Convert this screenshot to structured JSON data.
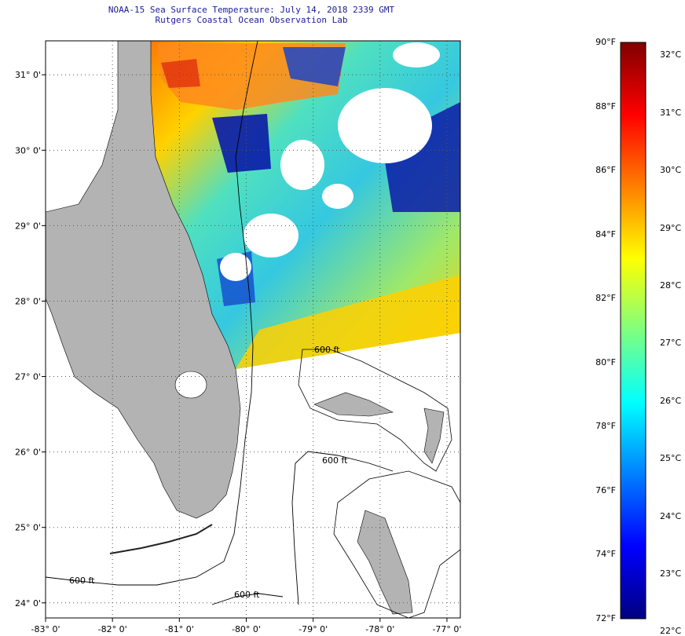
{
  "title": {
    "line1": "NOAA-15 Sea Surface Temperature:  July 14, 2018 2339 GMT",
    "line2": "Rutgers Coastal Ocean Observation Lab"
  },
  "map": {
    "lon_range": [
      -83,
      -76.8
    ],
    "lat_range": [
      23.8,
      31.45
    ],
    "lon_ticks": [
      {
        "value": -83,
        "label": "-83° 0'"
      },
      {
        "value": -82,
        "label": "-82° 0'"
      },
      {
        "value": -81,
        "label": "-81° 0'"
      },
      {
        "value": -80,
        "label": "-80° 0'"
      },
      {
        "value": -79,
        "label": "-79° 0'"
      },
      {
        "value": -78,
        "label": "-78° 0'"
      },
      {
        "value": -77,
        "label": "-77° 0'"
      }
    ],
    "lat_ticks": [
      {
        "value": 31,
        "label": "31° 0'"
      },
      {
        "value": 30,
        "label": "30° 0'"
      },
      {
        "value": 29,
        "label": "29° 0'"
      },
      {
        "value": 28,
        "label": "28° 0'"
      },
      {
        "value": 27,
        "label": "27° 0'"
      },
      {
        "value": 26,
        "label": "26° 0'"
      },
      {
        "value": 25,
        "label": "25° 0'"
      },
      {
        "value": 24,
        "label": "24° 0'"
      }
    ],
    "isobath_labels": [
      "600 ft",
      "600 ft",
      "600 ft",
      "600 ft"
    ],
    "colors": {
      "land": "#b3b3b3",
      "cloud": "#ffffff",
      "grid": "#555555",
      "isobath": "#000000"
    }
  },
  "colorbar": {
    "fahrenheit_labels": [
      "90°F",
      "88°F",
      "86°F",
      "84°F",
      "82°F",
      "80°F",
      "78°F",
      "76°F",
      "74°F",
      "72°F"
    ],
    "celsius_labels": [
      "32°C",
      "31°C",
      "30°C",
      "29°C",
      "28°C",
      "27°C",
      "26°C",
      "25°C",
      "24°C",
      "23°C",
      "22°C"
    ],
    "min_f": 72,
    "max_f": 90,
    "colormap": [
      "#00007f",
      "#0000ff",
      "#007fff",
      "#00ffff",
      "#7fff7f",
      "#ffff00",
      "#ff7f00",
      "#ff0000",
      "#7f0000"
    ]
  }
}
